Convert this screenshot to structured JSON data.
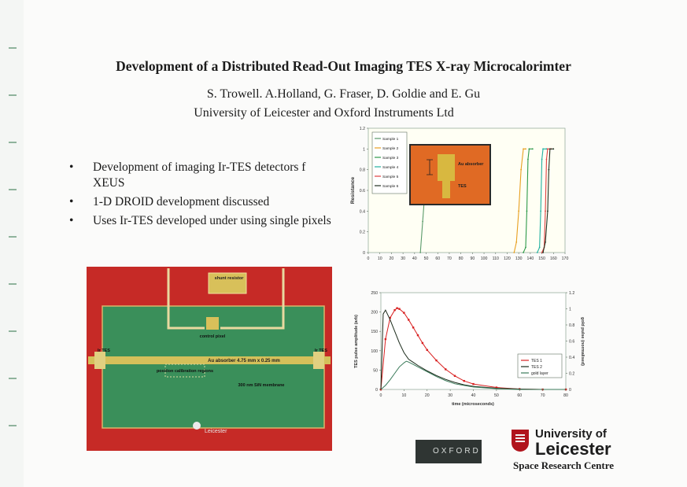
{
  "poster": {
    "title": "Development of a Distributed Read-Out Imaging TES X-ray Microcalorimter",
    "authors": "S. Trowell. A.Holland, G. Fraser, D. Goldie and E. Gu",
    "affiliation": "University of Leicester and Oxford Instruments Ltd",
    "bullets": [
      "Development of imaging Ir-TES detectors f XEUS",
      "1-D DROID development discussed",
      "Uses Ir-TES developed under using single pixels"
    ]
  },
  "photo": {
    "labels": {
      "shunt": "shunt resistor",
      "control": "control pixel",
      "ir_left": "Ir TES",
      "ir_right": "Ir TES",
      "absorber": "Au absorber   4.75 mm x 0.25 mm",
      "position": "position calibration regions",
      "membrane": "300 nm SiN membrane",
      "logo": "Leicester"
    },
    "colors": {
      "border": "#c62a26",
      "membrane": "#3a8f5a",
      "gold": "#d4c05a"
    }
  },
  "inset": {
    "au_absorber": "Au absorber",
    "tes": "TES"
  },
  "logos": {
    "oxford": "OXFORD",
    "university_l1": "University of",
    "university_l2": "Leicester",
    "src": "Space Research Centre"
  },
  "chart_data": [
    {
      "type": "line",
      "ylabel": "Resistance",
      "xlim": [
        0,
        170
      ],
      "ylim": [
        0,
        1.2
      ],
      "xticks": [
        0,
        10,
        20,
        30,
        40,
        50,
        60,
        70,
        80,
        90,
        100,
        110,
        120,
        130,
        140,
        150,
        160,
        170
      ],
      "yticks": [
        0,
        0.2,
        0.4,
        0.6,
        0.8,
        1,
        1.2
      ],
      "series": [
        {
          "name": "Sample 1",
          "color": "#5a9a6a",
          "x": [
            45,
            47,
            49,
            51,
            53,
            55
          ],
          "y": [
            0,
            0.3,
            0.6,
            0.8,
            0.95,
            1
          ]
        },
        {
          "name": "Sample 2",
          "color": "#e8a020",
          "x": [
            126,
            128,
            130,
            132,
            134,
            136
          ],
          "y": [
            0,
            0.1,
            0.4,
            0.8,
            1,
            1
          ]
        },
        {
          "name": "Sample 3",
          "color": "#2e9a4a",
          "x": [
            134,
            136,
            137,
            138,
            139,
            142
          ],
          "y": [
            0,
            0.05,
            0.4,
            0.9,
            1,
            1
          ]
        },
        {
          "name": "Sample 4",
          "color": "#20b0a0",
          "x": [
            146,
            148,
            149,
            150,
            151,
            154
          ],
          "y": [
            0,
            0.05,
            0.4,
            0.9,
            1,
            1
          ]
        },
        {
          "name": "Sample 5",
          "color": "#e04040",
          "x": [
            150,
            152,
            153,
            154,
            155,
            158
          ],
          "y": [
            0,
            0.05,
            0.4,
            0.9,
            1,
            1
          ]
        },
        {
          "name": "Sample 6",
          "color": "#203020",
          "x": [
            151,
            153,
            155,
            156,
            157,
            160
          ],
          "y": [
            0,
            0.1,
            0.4,
            0.8,
            1,
            1
          ]
        }
      ]
    },
    {
      "type": "line",
      "xlabel": "time (microseconds)",
      "ylabel": "TES pulse amplitude (arb)",
      "y2label": "gold pulse (normalised)",
      "xlim": [
        0,
        80
      ],
      "ylim": [
        0,
        250
      ],
      "y2lim": [
        0,
        1.2
      ],
      "xticks": [
        0,
        10,
        20,
        30,
        40,
        50,
        60,
        70,
        80
      ],
      "yticks": [
        0,
        50,
        100,
        150,
        200,
        250
      ],
      "y2ticks": [
        0,
        0.2,
        0.4,
        0.6,
        0.8,
        1,
        1.2
      ],
      "series": [
        {
          "name": "TES 1",
          "color": "#d82020",
          "marker": true,
          "x": [
            0,
            2,
            4,
            6,
            7,
            8,
            10,
            12,
            14,
            16,
            18,
            20,
            24,
            28,
            32,
            36,
            40,
            50,
            60,
            70,
            80
          ],
          "y": [
            0,
            130,
            185,
            205,
            210,
            208,
            198,
            180,
            160,
            140,
            120,
            102,
            75,
            52,
            35,
            22,
            14,
            5,
            1,
            0,
            0
          ]
        },
        {
          "name": "TES 2",
          "color": "#1a2a1a",
          "marker": false,
          "x": [
            0,
            1,
            2,
            4,
            6,
            8,
            10,
            12,
            14,
            16,
            20,
            24,
            28,
            32,
            36,
            40,
            50,
            60,
            70,
            80
          ],
          "y": [
            0,
            195,
            205,
            180,
            150,
            120,
            95,
            78,
            70,
            62,
            48,
            36,
            26,
            18,
            12,
            8,
            3,
            1,
            0,
            0
          ]
        },
        {
          "name": "gold layer",
          "color": "#3a7a5a",
          "marker": false,
          "axis": "right",
          "x": [
            0,
            2,
            4,
            6,
            8,
            10,
            11,
            12,
            14,
            16,
            20,
            24,
            28,
            32,
            36,
            40,
            50,
            60,
            70,
            80
          ],
          "y": [
            0,
            0.05,
            0.12,
            0.2,
            0.28,
            0.33,
            0.35,
            0.34,
            0.31,
            0.28,
            0.22,
            0.16,
            0.11,
            0.07,
            0.05,
            0.03,
            0.01,
            0,
            0,
            0
          ]
        }
      ]
    }
  ]
}
